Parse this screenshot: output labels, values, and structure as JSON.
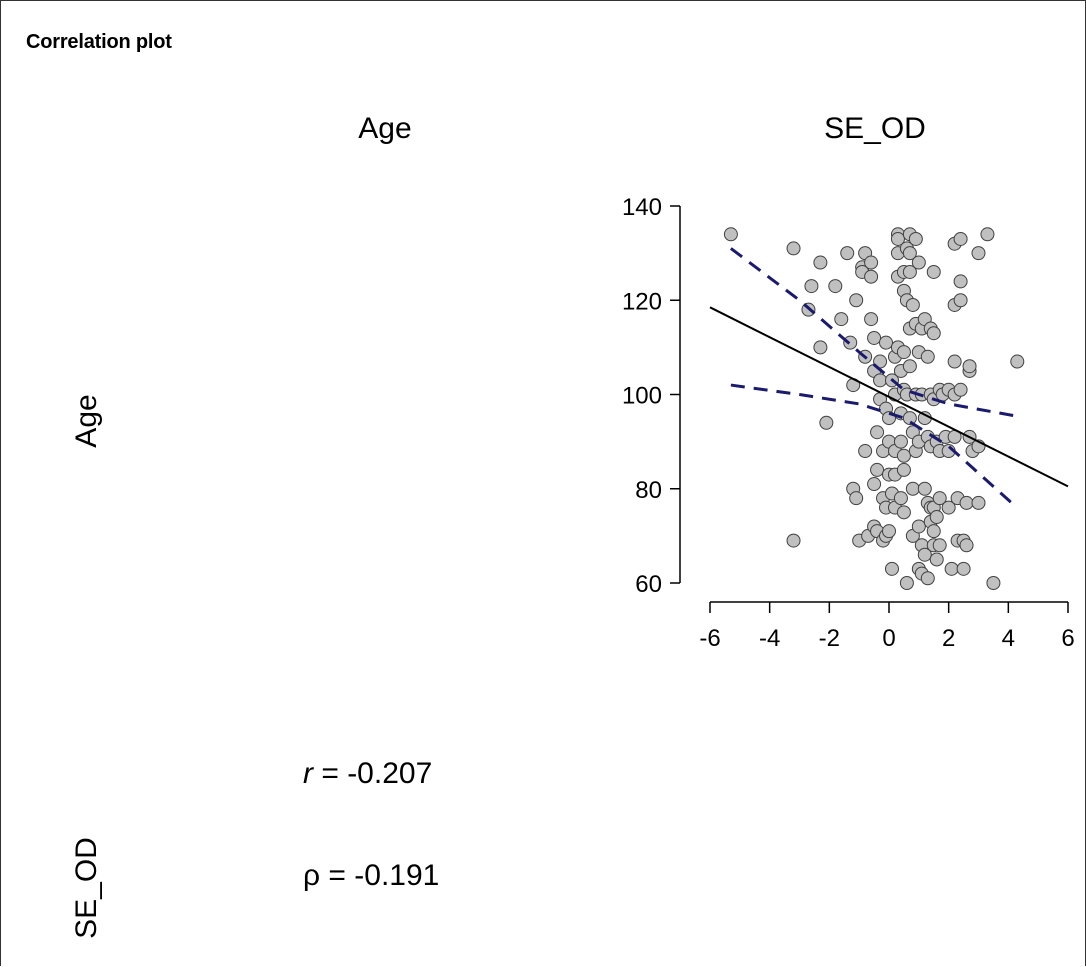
{
  "page": {
    "title": "Correlation plot"
  },
  "matrix": {
    "col_headers": [
      "Age",
      "SE_OD"
    ],
    "row_headers": [
      "Age",
      "SE_OD"
    ],
    "stats": {
      "r_symbol": "r",
      "r_value": " = -0.207",
      "rho_symbol": "ρ",
      "rho_value": " = -0.191"
    }
  },
  "colors": {
    "point_fill": "#c0c0c0",
    "point_stroke": "#404040",
    "fit_line": "#000000",
    "ci_line": "#1a1a6e"
  },
  "chart_data": {
    "type": "scatter",
    "title": "",
    "xlabel": "SE_OD",
    "ylabel": "Age",
    "xlim": [
      -6,
      6
    ],
    "ylim": [
      60,
      140
    ],
    "xticks": [
      -6,
      -4,
      -2,
      0,
      2,
      4,
      6
    ],
    "yticks": [
      60,
      80,
      100,
      120,
      140
    ],
    "grid": false,
    "fit_line": {
      "x": [
        -6,
        6
      ],
      "y": [
        118.5,
        80.5
      ]
    },
    "ci_upper": {
      "x": [
        -5.3,
        -3,
        -1,
        0.5,
        2,
        4.2
      ],
      "y": [
        131,
        120,
        109,
        101,
        98,
        95.5
      ]
    },
    "ci_lower": {
      "x": [
        -5.3,
        -3,
        -1,
        0.5,
        2,
        4.2
      ],
      "y": [
        102,
        100,
        98,
        95,
        89,
        76.5
      ]
    },
    "points": [
      [
        -5.3,
        134
      ],
      [
        -3.2,
        131
      ],
      [
        -3.2,
        69
      ],
      [
        -2.7,
        118
      ],
      [
        -2.6,
        123
      ],
      [
        -2.3,
        128
      ],
      [
        -2.3,
        110
      ],
      [
        -2.1,
        94
      ],
      [
        -1.8,
        123
      ],
      [
        -1.6,
        116
      ],
      [
        -1.4,
        130
      ],
      [
        -1.3,
        111
      ],
      [
        -1.2,
        102
      ],
      [
        -1.2,
        80
      ],
      [
        -1.1,
        120
      ],
      [
        -1.1,
        78
      ],
      [
        -1.0,
        69
      ],
      [
        -0.9,
        127
      ],
      [
        -0.9,
        126
      ],
      [
        -0.8,
        130
      ],
      [
        -0.8,
        108
      ],
      [
        -0.8,
        88
      ],
      [
        -0.7,
        70
      ],
      [
        -0.6,
        128
      ],
      [
        -0.6,
        125
      ],
      [
        -0.6,
        116
      ],
      [
        -0.5,
        112
      ],
      [
        -0.5,
        105
      ],
      [
        -0.5,
        81
      ],
      [
        -0.5,
        72
      ],
      [
        -0.4,
        92
      ],
      [
        -0.4,
        84
      ],
      [
        -0.4,
        71
      ],
      [
        -0.3,
        107
      ],
      [
        -0.3,
        103
      ],
      [
        -0.3,
        99
      ],
      [
        -0.2,
        88
      ],
      [
        -0.2,
        78
      ],
      [
        -0.2,
        69
      ],
      [
        -0.1,
        111
      ],
      [
        -0.1,
        97
      ],
      [
        -0.1,
        76
      ],
      [
        -0.1,
        70
      ],
      [
        0.0,
        95
      ],
      [
        0.0,
        90
      ],
      [
        0.0,
        83
      ],
      [
        0.0,
        71
      ],
      [
        0.1,
        103
      ],
      [
        0.1,
        79
      ],
      [
        0.1,
        63
      ],
      [
        0.2,
        108
      ],
      [
        0.2,
        100
      ],
      [
        0.2,
        88
      ],
      [
        0.2,
        83
      ],
      [
        0.2,
        76
      ],
      [
        0.3,
        134
      ],
      [
        0.3,
        133
      ],
      [
        0.3,
        130
      ],
      [
        0.3,
        125
      ],
      [
        0.3,
        110
      ],
      [
        0.4,
        105
      ],
      [
        0.4,
        96
      ],
      [
        0.4,
        90
      ],
      [
        0.4,
        78
      ],
      [
        0.5,
        126
      ],
      [
        0.5,
        122
      ],
      [
        0.5,
        109
      ],
      [
        0.5,
        101
      ],
      [
        0.5,
        87
      ],
      [
        0.5,
        84
      ],
      [
        0.5,
        75
      ],
      [
        0.6,
        131
      ],
      [
        0.6,
        120
      ],
      [
        0.6,
        100
      ],
      [
        0.6,
        60
      ],
      [
        0.7,
        134
      ],
      [
        0.7,
        130
      ],
      [
        0.7,
        126
      ],
      [
        0.7,
        114
      ],
      [
        0.7,
        106
      ],
      [
        0.7,
        95
      ],
      [
        0.8,
        119
      ],
      [
        0.8,
        92
      ],
      [
        0.8,
        80
      ],
      [
        0.8,
        70
      ],
      [
        0.9,
        133
      ],
      [
        0.9,
        115
      ],
      [
        0.9,
        100
      ],
      [
        0.9,
        88
      ],
      [
        1.0,
        128
      ],
      [
        1.0,
        109
      ],
      [
        1.0,
        90
      ],
      [
        1.0,
        72
      ],
      [
        1.0,
        63
      ],
      [
        1.1,
        114
      ],
      [
        1.1,
        100
      ],
      [
        1.1,
        68
      ],
      [
        1.1,
        62
      ],
      [
        1.2,
        116
      ],
      [
        1.2,
        95
      ],
      [
        1.2,
        80
      ],
      [
        1.2,
        66
      ],
      [
        1.3,
        108
      ],
      [
        1.3,
        91
      ],
      [
        1.3,
        77
      ],
      [
        1.3,
        61
      ],
      [
        1.4,
        114
      ],
      [
        1.4,
        100
      ],
      [
        1.4,
        89
      ],
      [
        1.4,
        76
      ],
      [
        1.4,
        73
      ],
      [
        1.5,
        126
      ],
      [
        1.5,
        113
      ],
      [
        1.5,
        99
      ],
      [
        1.5,
        76
      ],
      [
        1.5,
        71
      ],
      [
        1.5,
        68
      ],
      [
        1.6,
        90
      ],
      [
        1.6,
        74
      ],
      [
        1.6,
        65
      ],
      [
        1.7,
        101
      ],
      [
        1.7,
        88
      ],
      [
        1.7,
        78
      ],
      [
        1.7,
        68
      ],
      [
        1.8,
        100
      ],
      [
        1.9,
        91
      ],
      [
        2.0,
        101
      ],
      [
        2.0,
        88
      ],
      [
        2.0,
        76
      ],
      [
        2.1,
        63
      ],
      [
        2.2,
        132
      ],
      [
        2.2,
        119
      ],
      [
        2.2,
        107
      ],
      [
        2.2,
        100
      ],
      [
        2.2,
        91
      ],
      [
        2.3,
        78
      ],
      [
        2.3,
        69
      ],
      [
        2.4,
        133
      ],
      [
        2.4,
        124
      ],
      [
        2.4,
        120
      ],
      [
        2.4,
        101
      ],
      [
        2.5,
        63
      ],
      [
        2.5,
        69
      ],
      [
        2.6,
        68
      ],
      [
        2.6,
        77
      ],
      [
        2.7,
        105
      ],
      [
        2.7,
        106
      ],
      [
        2.7,
        91
      ],
      [
        2.8,
        88
      ],
      [
        3.0,
        89
      ],
      [
        3.0,
        130
      ],
      [
        3.0,
        77
      ],
      [
        3.3,
        134
      ],
      [
        3.5,
        60
      ],
      [
        4.3,
        107
      ]
    ]
  }
}
